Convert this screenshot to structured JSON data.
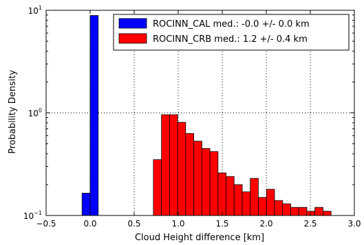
{
  "chart_data": {
    "type": "bar",
    "xlabel": "Cloud Height  difference [km]",
    "ylabel": "Probability Density",
    "xlim": [
      -0.5,
      3.0
    ],
    "ylim": [
      0.1,
      10
    ],
    "y_scale": "log",
    "grid": true,
    "legend_position": "top-right",
    "x_ticks": [
      "−0.5",
      "0.0",
      "0.5",
      "1.0",
      "1.5",
      "2.0",
      "2.5",
      "3.0"
    ],
    "x_tick_values": [
      -0.5,
      0.0,
      0.5,
      1.0,
      1.5,
      2.0,
      2.5,
      3.0
    ],
    "y_ticks": [
      {
        "value": 0.1,
        "base": "10",
        "exp": "−1"
      },
      {
        "value": 1,
        "base": "10",
        "exp": "0"
      },
      {
        "value": 10,
        "base": "10",
        "exp": "1"
      }
    ],
    "series": [
      {
        "name": "ROCINN_CAL med.: -0.0 +/- 0.0 km",
        "color": "#0000ff",
        "bin_width": 0.0917,
        "x": [
          -0.0917,
          0.0
        ],
        "values": [
          0.165,
          8.9
        ]
      },
      {
        "name": "ROCINN_CRB med.:  1.2 +/- 0.4 km",
        "color": "#ff0000",
        "bin_width": 0.0917,
        "x": [
          0.535,
          0.626,
          0.718,
          0.81,
          0.902,
          0.993,
          1.085,
          1.177,
          1.268,
          1.36,
          1.452,
          1.543,
          1.635,
          1.727,
          1.818,
          1.91,
          2.002,
          2.094,
          2.185,
          2.277,
          2.369,
          2.46,
          2.552,
          2.644
        ],
        "values": [
          0,
          0,
          0.35,
          0.96,
          0.96,
          0.81,
          0.63,
          0.53,
          0.45,
          0.42,
          0.26,
          0.24,
          0.2,
          0.17,
          0.23,
          0.15,
          0.18,
          0.14,
          0.13,
          0.12,
          0.12,
          0.11,
          0.12,
          0.11
        ]
      }
    ]
  }
}
